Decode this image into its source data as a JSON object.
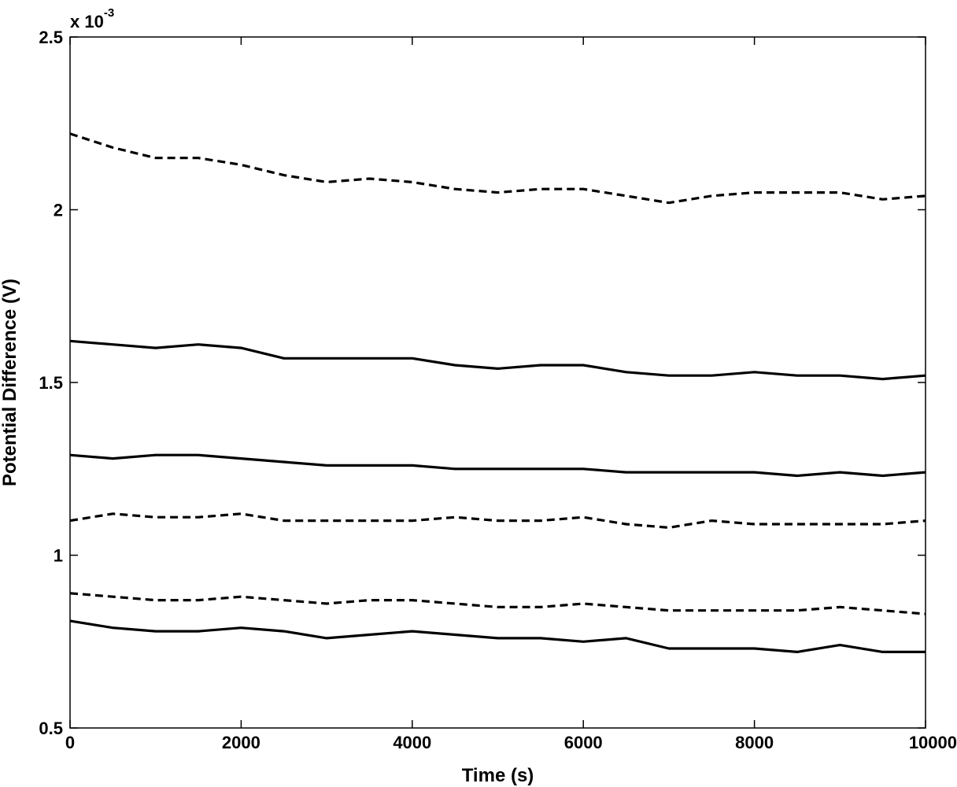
{
  "chart_data": {
    "type": "line",
    "title": "",
    "xlabel": "Time (s)",
    "ylabel": "Potential Difference (V)",
    "y_scale_label": "x 10",
    "y_scale_exponent": "-3",
    "xlim": [
      0,
      10000
    ],
    "ylim": [
      0.5,
      2.5
    ],
    "x_ticks": [
      0,
      2000,
      4000,
      6000,
      8000,
      10000
    ],
    "x_tick_labels": [
      "0",
      "2000",
      "4000",
      "6000",
      "8000",
      "10000"
    ],
    "y_ticks": [
      0.5,
      1,
      1.5,
      2,
      2.5
    ],
    "y_tick_labels": [
      "0.5",
      "1",
      "1.5",
      "2",
      "2.5"
    ],
    "grid": false,
    "legend": "none",
    "x": [
      0,
      500,
      1000,
      1500,
      2000,
      2500,
      3000,
      3500,
      4000,
      4500,
      5000,
      5500,
      6000,
      6500,
      7000,
      7500,
      8000,
      8500,
      9000,
      9500,
      10000
    ],
    "series": [
      {
        "style": "dashed",
        "values": [
          2.22,
          2.18,
          2.15,
          2.15,
          2.13,
          2.1,
          2.08,
          2.09,
          2.08,
          2.06,
          2.05,
          2.06,
          2.06,
          2.04,
          2.02,
          2.04,
          2.05,
          2.05,
          2.05,
          2.03,
          2.04
        ]
      },
      {
        "style": "solid",
        "values": [
          1.62,
          1.61,
          1.6,
          1.61,
          1.6,
          1.57,
          1.57,
          1.57,
          1.57,
          1.55,
          1.54,
          1.55,
          1.55,
          1.53,
          1.52,
          1.52,
          1.53,
          1.52,
          1.52,
          1.51,
          1.52
        ]
      },
      {
        "style": "solid",
        "values": [
          1.29,
          1.28,
          1.29,
          1.29,
          1.28,
          1.27,
          1.26,
          1.26,
          1.26,
          1.25,
          1.25,
          1.25,
          1.25,
          1.24,
          1.24,
          1.24,
          1.24,
          1.23,
          1.24,
          1.23,
          1.24
        ]
      },
      {
        "style": "dashed",
        "values": [
          1.1,
          1.12,
          1.11,
          1.11,
          1.12,
          1.1,
          1.1,
          1.1,
          1.1,
          1.11,
          1.1,
          1.1,
          1.11,
          1.09,
          1.08,
          1.1,
          1.09,
          1.09,
          1.09,
          1.09,
          1.1
        ]
      },
      {
        "style": "dashed",
        "values": [
          0.89,
          0.88,
          0.87,
          0.87,
          0.88,
          0.87,
          0.86,
          0.87,
          0.87,
          0.86,
          0.85,
          0.85,
          0.86,
          0.85,
          0.84,
          0.84,
          0.84,
          0.84,
          0.85,
          0.84,
          0.83
        ]
      },
      {
        "style": "solid",
        "values": [
          0.81,
          0.79,
          0.78,
          0.78,
          0.79,
          0.78,
          0.76,
          0.77,
          0.78,
          0.77,
          0.76,
          0.76,
          0.75,
          0.76,
          0.73,
          0.73,
          0.73,
          0.72,
          0.74,
          0.72,
          0.72
        ]
      }
    ]
  }
}
